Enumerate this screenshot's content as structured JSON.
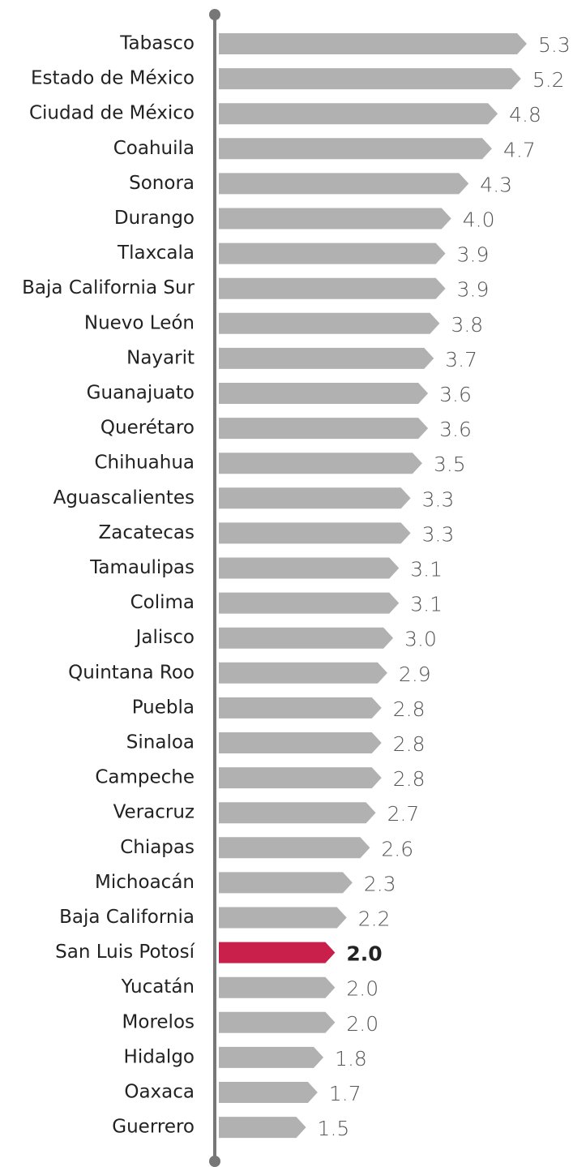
{
  "chart_data": {
    "type": "hbar",
    "categories": [
      "Tabasco",
      "Estado de México",
      "Ciudad de México",
      "Coahuila",
      "Sonora",
      "Durango",
      "Tlaxcala",
      "Baja California Sur",
      "Nuevo León",
      "Nayarit",
      "Guanajuato",
      "Querétaro",
      "Chihuahua",
      "Aguascalientes",
      "Zacatecas",
      "Tamaulipas",
      "Colima",
      "Jalisco",
      "Quintana Roo",
      "Puebla",
      "Sinaloa",
      "Campeche",
      "Veracruz",
      "Chiapas",
      "Michoacán",
      "Baja California",
      "San Luis Potosí",
      "Yucatán",
      "Morelos",
      "Hidalgo",
      "Oaxaca",
      "Guerrero"
    ],
    "values": [
      5.3,
      5.2,
      4.8,
      4.7,
      4.3,
      4.0,
      3.9,
      3.9,
      3.8,
      3.7,
      3.6,
      3.6,
      3.5,
      3.3,
      3.3,
      3.1,
      3.1,
      3.0,
      2.9,
      2.8,
      2.8,
      2.8,
      2.7,
      2.6,
      2.3,
      2.2,
      2.0,
      2.0,
      2.0,
      1.8,
      1.7,
      1.5
    ],
    "value_labels": [
      "5.3",
      "5.2",
      "4.8",
      "4.7",
      "4.3",
      "4.0",
      "3.9",
      "3.9",
      "3.8",
      "3.7",
      "3.6",
      "3.6",
      "3.5",
      "3.3",
      "3.3",
      "3.1",
      "3.1",
      "3.0",
      "2.9",
      "2.8",
      "2.8",
      "2.8",
      "2.7",
      "2.6",
      "2.3",
      "2.2",
      "2.0",
      "2.0",
      "2.0",
      "1.8",
      "1.7",
      "1.5"
    ],
    "colors": [
      "#b1b1b1",
      "#b1b1b1",
      "#b1b1b1",
      "#b1b1b1",
      "#b1b1b1",
      "#b1b1b1",
      "#b1b1b1",
      "#b1b1b1",
      "#b1b1b1",
      "#b1b1b1",
      "#b1b1b1",
      "#b1b1b1",
      "#b1b1b1",
      "#b1b1b1",
      "#b1b1b1",
      "#b1b1b1",
      "#b1b1b1",
      "#b1b1b1",
      "#b1b1b1",
      "#b1b1b1",
      "#b1b1b1",
      "#b1b1b1",
      "#b1b1b1",
      "#b1b1b1",
      "#b1b1b1",
      "#b1b1b1",
      "#c8204a",
      "#b1b1b1",
      "#b1b1b1",
      "#b1b1b1",
      "#b1b1b1",
      "#b1b1b1"
    ]
  }
}
